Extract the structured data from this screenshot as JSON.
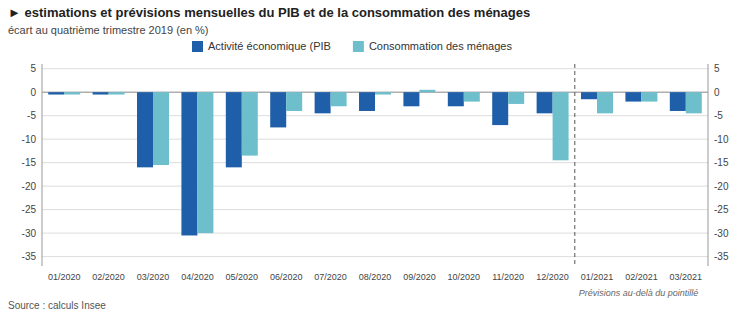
{
  "chart_data": {
    "type": "bar",
    "title": "► estimations et prévisions mensuelles du PIB et de la consommation des ménages",
    "subtitle": "écart au quatrième trimestre 2019 (en %)",
    "source": "Source : calculs Insee",
    "categories": [
      "01/2020",
      "02/2020",
      "03/2020",
      "04/2020",
      "05/2020",
      "06/2020",
      "07/2020",
      "08/2020",
      "09/2020",
      "10/2020",
      "11/2020",
      "12/2020",
      "01/2021",
      "02/2021",
      "03/2021"
    ],
    "series": [
      {
        "name": "Activité économique (PIB",
        "color": "#1f5ea8",
        "values": [
          -0.5,
          -0.5,
          -16.0,
          -30.5,
          -16.0,
          -7.5,
          -4.5,
          -4.0,
          -3.0,
          -3.0,
          -7.0,
          -4.5,
          -1.5,
          -2.0,
          -4.0
        ]
      },
      {
        "name": "Consommation des ménages",
        "color": "#6dbfcc",
        "values": [
          -0.5,
          -0.5,
          -15.5,
          -30.0,
          -13.5,
          -4.0,
          -3.0,
          -0.5,
          0.5,
          -2.0,
          -2.5,
          -14.5,
          -4.5,
          -2.0,
          -4.5
        ]
      }
    ],
    "ylim": [
      -37,
      6
    ],
    "yticks": [
      5,
      0,
      -5,
      -10,
      -15,
      -20,
      -25,
      -30,
      -35
    ],
    "y2lim": [
      -37,
      6
    ],
    "y2ticks": [
      5,
      0,
      -5,
      -10,
      -15,
      -20,
      -25,
      -30,
      -35
    ],
    "annotations": [
      {
        "text": "Prévisions au-delà du pointillé",
        "x": "12/2020"
      }
    ],
    "grid": true,
    "legend": "top"
  }
}
